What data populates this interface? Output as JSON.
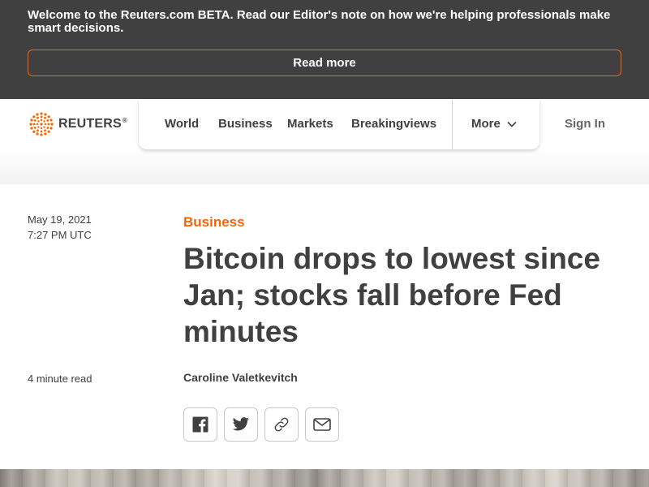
{
  "beta_banner": {
    "message": "Welcome to the Reuters.com BETA. Read our Editor's note on how we're helping professionals make smart decisions.",
    "button_label": "Read more",
    "accent_color": "#fa6400"
  },
  "header": {
    "logo_text": "REUTERS",
    "logo_mark": "®",
    "nav": [
      "World",
      "Business",
      "Markets",
      "Breakingviews"
    ],
    "more_label": "More",
    "sign_in": "Sign In"
  },
  "article": {
    "date": "May 19, 2021",
    "time": "7:27 PM UTC",
    "category": "Business",
    "headline": "Bitcoin drops to lowest since Jan; stocks fall before Fed minutes",
    "read_time": "4 minute read",
    "author": "Caroline Valetkevitch",
    "share_icons": [
      "facebook-icon",
      "twitter-icon",
      "link-icon",
      "email-icon"
    ]
  }
}
